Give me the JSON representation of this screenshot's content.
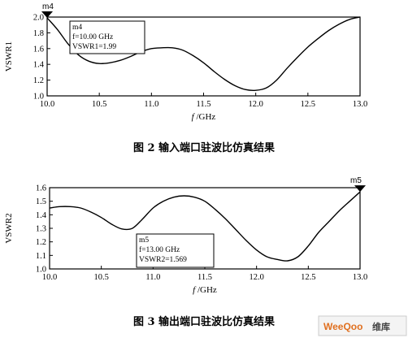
{
  "chart_data": [
    {
      "type": "line",
      "ylabel": "VSWR1",
      "xlabel_prefix": "f",
      "xlabel_suffix": " /GHz",
      "xlim": [
        10.0,
        13.0
      ],
      "ylim": [
        1.0,
        2.0
      ],
      "x_ticks": [
        "10.0",
        "10.5",
        "11.0",
        "11.5",
        "12.0",
        "12.5",
        "13.0"
      ],
      "y_ticks": [
        "1.0",
        "1.2",
        "1.4",
        "1.6",
        "1.8",
        "2.0"
      ],
      "series": [
        {
          "x": [
            10.0,
            10.1,
            10.2,
            10.3,
            10.4,
            10.5,
            10.6,
            10.7,
            10.8,
            10.9,
            11.0,
            11.1,
            11.2,
            11.3,
            11.4,
            11.5,
            11.6,
            11.7,
            11.8,
            11.9,
            12.0,
            12.1,
            12.2,
            12.3,
            12.4,
            12.5,
            12.6,
            12.7,
            12.8,
            12.9,
            13.0
          ],
          "y": [
            1.99,
            1.84,
            1.66,
            1.52,
            1.44,
            1.41,
            1.42,
            1.45,
            1.5,
            1.56,
            1.6,
            1.61,
            1.61,
            1.58,
            1.51,
            1.42,
            1.31,
            1.21,
            1.13,
            1.08,
            1.07,
            1.1,
            1.2,
            1.35,
            1.49,
            1.62,
            1.73,
            1.83,
            1.91,
            1.97,
            2.0
          ]
        }
      ],
      "marker": {
        "name": "m4",
        "x": 10.0,
        "y": 1.99,
        "box_lines": [
          "m4",
          "f=10.00 GHz",
          "VSWR1=1.99"
        ]
      },
      "caption": "图 2   输入端口驻波比仿真结果"
    },
    {
      "type": "line",
      "ylabel": "VSWR2",
      "xlabel_prefix": "f",
      "xlabel_suffix": " /GHz",
      "xlim": [
        10.0,
        13.0
      ],
      "ylim": [
        1.0,
        1.6
      ],
      "x_ticks": [
        "10.0",
        "10.5",
        "11.0",
        "11.5",
        "12.0",
        "12.5",
        "13.0"
      ],
      "y_ticks": [
        "1.0",
        "1.1",
        "1.2",
        "1.3",
        "1.4",
        "1.5",
        "1.6"
      ],
      "series": [
        {
          "x": [
            10.0,
            10.1,
            10.2,
            10.3,
            10.4,
            10.5,
            10.6,
            10.7,
            10.8,
            10.9,
            11.0,
            11.1,
            11.2,
            11.3,
            11.4,
            11.5,
            11.6,
            11.7,
            11.8,
            11.9,
            12.0,
            12.1,
            12.2,
            12.3,
            12.4,
            12.5,
            12.6,
            12.7,
            12.8,
            12.9,
            13.0
          ],
          "y": [
            1.45,
            1.46,
            1.46,
            1.45,
            1.42,
            1.38,
            1.33,
            1.295,
            1.3,
            1.37,
            1.45,
            1.5,
            1.53,
            1.54,
            1.53,
            1.5,
            1.44,
            1.37,
            1.29,
            1.21,
            1.14,
            1.09,
            1.07,
            1.06,
            1.09,
            1.17,
            1.27,
            1.35,
            1.43,
            1.5,
            1.569
          ]
        }
      ],
      "marker": {
        "name": "m5",
        "x": 13.0,
        "y": 1.569,
        "box_lines": [
          "m5",
          "f=13.00 GHz",
          "VSWR2=1.569"
        ]
      },
      "caption": "图 3   输出端口驻波比仿真结果"
    }
  ],
  "watermark": {
    "brand": "WeeQoo",
    "cn": "维库"
  }
}
